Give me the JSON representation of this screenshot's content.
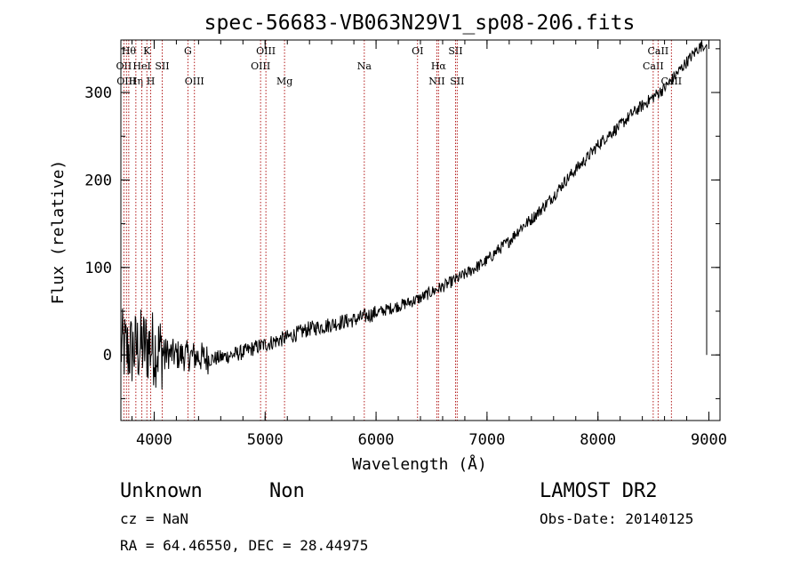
{
  "chart_data": {
    "type": "line",
    "title": "spec-56683-VB063N29V1_sp08-206.fits",
    "xlabel": "Wavelength (Å)",
    "ylabel": "Flux (relative)",
    "xlim": [
      3700,
      9100
    ],
    "ylim": [
      -75,
      360
    ],
    "xticks": [
      4000,
      5000,
      6000,
      7000,
      8000,
      9000
    ],
    "xtick_labels": [
      "4000",
      "5000",
      "6000",
      "7000",
      "8000",
      "9000"
    ],
    "yticks": [
      0,
      100,
      200,
      300
    ],
    "ytick_labels": [
      "0",
      "100",
      "200",
      "300"
    ],
    "grid": false,
    "series": [
      {
        "x": [
          3700,
          3750,
          3800,
          3850,
          3900,
          3950,
          4000,
          4100,
          4200,
          4300,
          4400,
          4500,
          4600,
          4700,
          4800,
          4900,
          5000,
          5100,
          5200,
          5300,
          5400,
          5500,
          5600,
          5700,
          5800,
          5900,
          6000,
          6100,
          6200,
          6300,
          6400,
          6500,
          6600,
          6700,
          6800,
          6900,
          7000,
          7100,
          7200,
          7300,
          7400,
          7500,
          7600,
          7700,
          7800,
          7900,
          8000,
          8100,
          8200,
          8300,
          8400,
          8500,
          8600,
          8700,
          8800,
          8900,
          8950,
          9000
        ],
        "y": [
          10,
          5,
          5,
          8,
          10,
          10,
          8,
          2,
          0,
          -1,
          -2,
          -5,
          -3,
          0,
          3,
          8,
          12,
          16,
          20,
          25,
          30,
          32,
          35,
          38,
          40,
          44,
          48,
          52,
          56,
          60,
          65,
          72,
          78,
          85,
          92,
          100,
          108,
          120,
          130,
          145,
          155,
          168,
          182,
          198,
          212,
          225,
          240,
          252,
          262,
          275,
          285,
          295,
          305,
          320,
          335,
          350,
          355,
          0
        ]
      }
    ],
    "lines": [
      {
        "wavelength": 3727,
        "label": "OII",
        "row": 2
      },
      {
        "wavelength": 3750,
        "label": "OIII",
        "row": 3
      },
      {
        "wavelength": 3771,
        "label": "Hθ",
        "row": 1
      },
      {
        "wavelength": 3835,
        "label": "Hη",
        "row": 3
      },
      {
        "wavelength": 3889,
        "label": "HeI",
        "row": 2
      },
      {
        "wavelength": 3934,
        "label": "K",
        "row": 1
      },
      {
        "wavelength": 3969,
        "label": "H",
        "row": 3
      },
      {
        "wavelength": 4072,
        "label": "SII",
        "row": 2
      },
      {
        "wavelength": 4304,
        "label": "G",
        "row": 1
      },
      {
        "wavelength": 4363,
        "label": "OIII",
        "row": 3
      },
      {
        "wavelength": 4959,
        "label": "OIII",
        "row": 2
      },
      {
        "wavelength": 5007,
        "label": "OIII",
        "row": 1
      },
      {
        "wavelength": 5175,
        "label": "Mg",
        "row": 3
      },
      {
        "wavelength": 5894,
        "label": "Na",
        "row": 2
      },
      {
        "wavelength": 6374,
        "label": "OI",
        "row": 1
      },
      {
        "wavelength": 6548,
        "label": "NII",
        "row": 3
      },
      {
        "wavelength": 6563,
        "label": "Hα",
        "row": 2
      },
      {
        "wavelength": 6716,
        "label": "SII",
        "row": 1
      },
      {
        "wavelength": 6731,
        "label": "SII",
        "row": 3
      },
      {
        "wavelength": 8498,
        "label": "CaII",
        "row": 2
      },
      {
        "wavelength": 8542,
        "label": "CaII",
        "row": 1
      },
      {
        "wavelength": 8662,
        "label": "CaII",
        "row": 3
      }
    ]
  },
  "info": {
    "class": "Unknown",
    "subclass": "Non",
    "survey": "LAMOST DR2",
    "cz": "cz = NaN",
    "obsdate": "Obs-Date: 20140125",
    "coords": "RA =  64.46550, DEC =  28.44975"
  }
}
